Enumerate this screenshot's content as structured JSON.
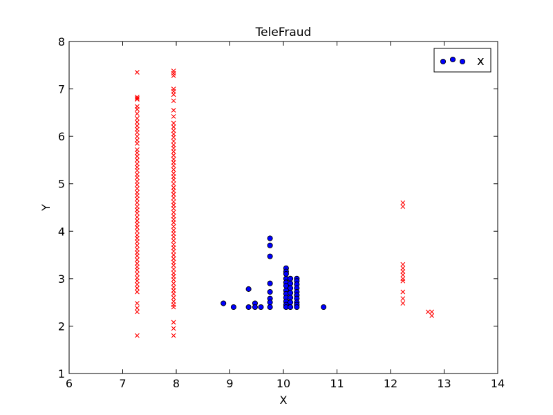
{
  "chart_data": {
    "type": "scatter",
    "title": "TeleFraud",
    "xlabel": "X",
    "ylabel": "Y",
    "xlim": [
      6,
      14
    ],
    "ylim": [
      1,
      8
    ],
    "xticks": [
      6,
      7,
      8,
      9,
      10,
      11,
      12,
      13,
      14
    ],
    "yticks": [
      1,
      2,
      3,
      4,
      5,
      6,
      7,
      8
    ],
    "grid": false,
    "legend": {
      "position": "top-right",
      "label": "x"
    },
    "series": [
      {
        "marker": "circle",
        "color": "#0000ff",
        "edgecolor": "#000000",
        "in_legend": true,
        "points": [
          [
            8.88,
            2.48
          ],
          [
            9.07,
            2.4
          ],
          [
            9.35,
            2.78
          ],
          [
            9.35,
            2.4
          ],
          [
            9.47,
            2.48
          ],
          [
            9.47,
            2.4
          ],
          [
            9.58,
            2.4
          ],
          [
            9.75,
            3.85
          ],
          [
            9.75,
            3.7
          ],
          [
            9.75,
            3.47
          ],
          [
            9.75,
            2.9
          ],
          [
            9.75,
            2.72
          ],
          [
            9.75,
            2.58
          ],
          [
            9.75,
            2.5
          ],
          [
            9.75,
            2.4
          ],
          [
            10.05,
            3.22
          ],
          [
            10.05,
            3.15
          ],
          [
            10.05,
            3.1
          ],
          [
            10.05,
            3.0
          ],
          [
            10.05,
            2.92
          ],
          [
            10.05,
            2.85
          ],
          [
            10.05,
            2.75
          ],
          [
            10.05,
            2.68
          ],
          [
            10.05,
            2.6
          ],
          [
            10.05,
            2.52
          ],
          [
            10.05,
            2.45
          ],
          [
            10.05,
            2.4
          ],
          [
            10.13,
            3.0
          ],
          [
            10.13,
            2.9
          ],
          [
            10.13,
            2.8
          ],
          [
            10.13,
            2.7
          ],
          [
            10.13,
            2.6
          ],
          [
            10.13,
            2.5
          ],
          [
            10.13,
            2.4
          ],
          [
            10.25,
            3.0
          ],
          [
            10.25,
            2.95
          ],
          [
            10.25,
            2.88
          ],
          [
            10.25,
            2.8
          ],
          [
            10.25,
            2.72
          ],
          [
            10.25,
            2.65
          ],
          [
            10.25,
            2.58
          ],
          [
            10.25,
            2.5
          ],
          [
            10.25,
            2.45
          ],
          [
            10.25,
            2.4
          ],
          [
            10.75,
            2.4
          ]
        ]
      },
      {
        "marker": "x",
        "color": "#ff0000",
        "in_legend": false,
        "points": [
          [
            7.27,
            7.35
          ],
          [
            7.27,
            6.83
          ],
          [
            7.27,
            6.8
          ],
          [
            7.27,
            6.78
          ],
          [
            7.27,
            6.63
          ],
          [
            7.27,
            6.57
          ],
          [
            7.27,
            6.48
          ],
          [
            7.27,
            6.38
          ],
          [
            7.27,
            6.3
          ],
          [
            7.27,
            6.22
          ],
          [
            7.27,
            6.15
          ],
          [
            7.27,
            6.08
          ],
          [
            7.27,
            6.0
          ],
          [
            7.27,
            5.92
          ],
          [
            7.27,
            5.85
          ],
          [
            7.27,
            5.72
          ],
          [
            7.27,
            5.65
          ],
          [
            7.27,
            5.58
          ],
          [
            7.27,
            5.5
          ],
          [
            7.27,
            5.42
          ],
          [
            7.27,
            5.35
          ],
          [
            7.27,
            5.28
          ],
          [
            7.27,
            5.2
          ],
          [
            7.27,
            5.13
          ],
          [
            7.27,
            5.05
          ],
          [
            7.27,
            4.98
          ],
          [
            7.27,
            4.9
          ],
          [
            7.27,
            4.82
          ],
          [
            7.27,
            4.75
          ],
          [
            7.27,
            4.68
          ],
          [
            7.27,
            4.6
          ],
          [
            7.27,
            4.52
          ],
          [
            7.27,
            4.45
          ],
          [
            7.27,
            4.38
          ],
          [
            7.27,
            4.3
          ],
          [
            7.27,
            4.22
          ],
          [
            7.27,
            4.15
          ],
          [
            7.27,
            4.08
          ],
          [
            7.27,
            4.0
          ],
          [
            7.27,
            3.92
          ],
          [
            7.27,
            3.85
          ],
          [
            7.27,
            3.78
          ],
          [
            7.27,
            3.7
          ],
          [
            7.27,
            3.62
          ],
          [
            7.27,
            3.55
          ],
          [
            7.27,
            3.48
          ],
          [
            7.27,
            3.4
          ],
          [
            7.27,
            3.32
          ],
          [
            7.27,
            3.25
          ],
          [
            7.27,
            3.18
          ],
          [
            7.27,
            3.1
          ],
          [
            7.27,
            3.02
          ],
          [
            7.27,
            2.95
          ],
          [
            7.27,
            2.88
          ],
          [
            7.27,
            2.8
          ],
          [
            7.27,
            2.72
          ],
          [
            7.27,
            2.48
          ],
          [
            7.27,
            2.38
          ],
          [
            7.27,
            2.3
          ],
          [
            7.27,
            1.8
          ],
          [
            7.95,
            7.38
          ],
          [
            7.95,
            7.33
          ],
          [
            7.95,
            7.28
          ],
          [
            7.95,
            7.0
          ],
          [
            7.95,
            6.95
          ],
          [
            7.95,
            6.88
          ],
          [
            7.95,
            6.75
          ],
          [
            7.95,
            6.55
          ],
          [
            7.95,
            6.42
          ],
          [
            7.95,
            6.28
          ],
          [
            7.95,
            6.2
          ],
          [
            7.95,
            6.12
          ],
          [
            7.95,
            6.05
          ],
          [
            7.95,
            5.98
          ],
          [
            7.95,
            5.9
          ],
          [
            7.95,
            5.82
          ],
          [
            7.95,
            5.75
          ],
          [
            7.95,
            5.68
          ],
          [
            7.95,
            5.6
          ],
          [
            7.95,
            5.52
          ],
          [
            7.95,
            5.45
          ],
          [
            7.95,
            5.38
          ],
          [
            7.95,
            5.3
          ],
          [
            7.95,
            5.22
          ],
          [
            7.95,
            5.15
          ],
          [
            7.95,
            5.08
          ],
          [
            7.95,
            5.0
          ],
          [
            7.95,
            4.92
          ],
          [
            7.95,
            4.85
          ],
          [
            7.95,
            4.78
          ],
          [
            7.95,
            4.7
          ],
          [
            7.95,
            4.62
          ],
          [
            7.95,
            4.55
          ],
          [
            7.95,
            4.48
          ],
          [
            7.95,
            4.4
          ],
          [
            7.95,
            4.32
          ],
          [
            7.95,
            4.25
          ],
          [
            7.95,
            4.18
          ],
          [
            7.95,
            4.1
          ],
          [
            7.95,
            4.02
          ],
          [
            7.95,
            3.95
          ],
          [
            7.95,
            3.88
          ],
          [
            7.95,
            3.8
          ],
          [
            7.95,
            3.72
          ],
          [
            7.95,
            3.65
          ],
          [
            7.95,
            3.58
          ],
          [
            7.95,
            3.5
          ],
          [
            7.95,
            3.42
          ],
          [
            7.95,
            3.35
          ],
          [
            7.95,
            3.28
          ],
          [
            7.95,
            3.2
          ],
          [
            7.95,
            3.12
          ],
          [
            7.95,
            3.05
          ],
          [
            7.95,
            2.98
          ],
          [
            7.95,
            2.9
          ],
          [
            7.95,
            2.82
          ],
          [
            7.95,
            2.75
          ],
          [
            7.95,
            2.68
          ],
          [
            7.95,
            2.6
          ],
          [
            7.95,
            2.52
          ],
          [
            7.95,
            2.45
          ],
          [
            7.95,
            2.4
          ],
          [
            7.95,
            2.08
          ],
          [
            7.95,
            1.95
          ],
          [
            7.95,
            1.8
          ],
          [
            12.23,
            4.6
          ],
          [
            12.23,
            4.52
          ],
          [
            12.23,
            3.3
          ],
          [
            12.23,
            3.22
          ],
          [
            12.23,
            3.15
          ],
          [
            12.23,
            3.08
          ],
          [
            12.23,
            3.0
          ],
          [
            12.23,
            2.95
          ],
          [
            12.23,
            2.72
          ],
          [
            12.23,
            2.58
          ],
          [
            12.23,
            2.48
          ],
          [
            12.7,
            2.3
          ],
          [
            12.77,
            2.3
          ],
          [
            12.77,
            2.22
          ]
        ]
      }
    ]
  }
}
